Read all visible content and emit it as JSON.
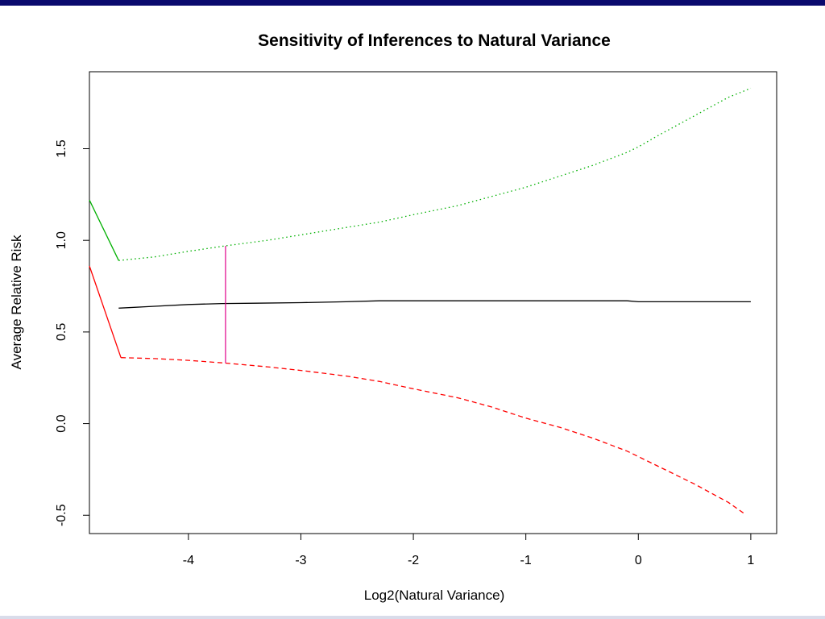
{
  "chart_data": {
    "type": "line",
    "title": "Sensitivity of Inferences to Natural Variance",
    "xlabel": "Log2(Natural Variance)",
    "ylabel": "Average Relative Risk",
    "xlim": [
      -4.88,
      1.23
    ],
    "ylim": [
      -0.6,
      1.92
    ],
    "x_ticks": [
      -4,
      -3,
      -2,
      -1,
      0,
      1
    ],
    "x_tick_labels": [
      "-4",
      "-3",
      "-2",
      "-1",
      "0",
      "1"
    ],
    "y_ticks": [
      -0.5,
      0.0,
      0.5,
      1.0,
      1.5
    ],
    "y_tick_labels": [
      "-0.5",
      "0.0",
      "0.5",
      "1.0",
      "1.5"
    ],
    "grid": false,
    "series": [
      {
        "color": "#00b000",
        "style": "dotted",
        "x": [
          -4.62,
          -4.3,
          -4.0,
          -3.67,
          -3.3,
          -3.0,
          -2.6,
          -2.3,
          -2.0,
          -1.6,
          -1.3,
          -1.0,
          -0.7,
          -0.4,
          -0.1,
          0.0,
          0.2,
          0.5,
          0.8,
          1.0
        ],
        "y": [
          0.89,
          0.91,
          0.94,
          0.97,
          1.0,
          1.03,
          1.07,
          1.1,
          1.14,
          1.19,
          1.24,
          1.29,
          1.35,
          1.41,
          1.48,
          1.51,
          1.58,
          1.68,
          1.78,
          1.83
        ]
      },
      {
        "color": "#00b000",
        "style": "solid",
        "x": [
          -4.88,
          -4.62
        ],
        "y": [
          1.22,
          0.89
        ]
      },
      {
        "color": "#000000",
        "style": "solid",
        "x": [
          -4.62,
          -4.3,
          -4.0,
          -3.7,
          -3.4,
          -3.0,
          -2.6,
          -2.3,
          -2.0,
          -1.5,
          -1.0,
          -0.5,
          -0.1,
          0.0,
          0.5,
          1.0
        ],
        "y": [
          0.63,
          0.64,
          0.65,
          0.655,
          0.657,
          0.66,
          0.665,
          0.67,
          0.67,
          0.67,
          0.67,
          0.67,
          0.67,
          0.665,
          0.665,
          0.665
        ]
      },
      {
        "color": "#ff0000",
        "style": "dashed",
        "x": [
          -4.6,
          -4.3,
          -4.0,
          -3.67,
          -3.3,
          -3.0,
          -2.6,
          -2.3,
          -2.0,
          -1.6,
          -1.3,
          -1.0,
          -0.7,
          -0.4,
          -0.1,
          0.2,
          0.5,
          0.8,
          0.94
        ],
        "y": [
          0.36,
          0.355,
          0.345,
          0.33,
          0.31,
          0.29,
          0.26,
          0.23,
          0.19,
          0.14,
          0.09,
          0.03,
          -0.02,
          -0.08,
          -0.15,
          -0.24,
          -0.33,
          -0.43,
          -0.49
        ]
      },
      {
        "color": "#ff0000",
        "style": "solid",
        "x": [
          -4.88,
          -4.6
        ],
        "y": [
          0.86,
          0.36
        ]
      }
    ],
    "annotations": [
      {
        "kind": "vertical-segment",
        "color": "#e0008a",
        "x": -3.67,
        "y_from": 0.33,
        "y_to": 0.97
      }
    ]
  }
}
